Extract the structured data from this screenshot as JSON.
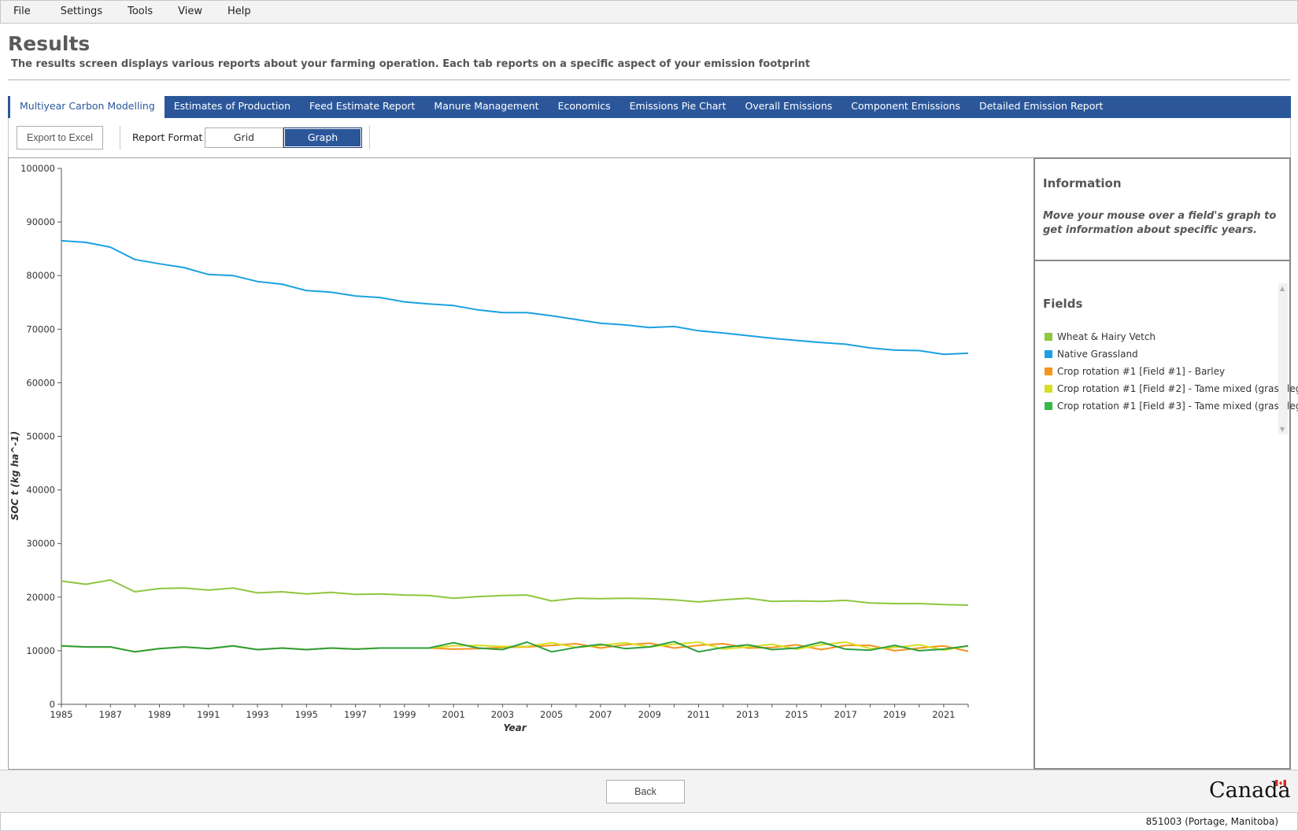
{
  "menu": [
    "File",
    "Settings",
    "Tools",
    "View",
    "Help"
  ],
  "header": {
    "title": "Results",
    "subtitle": "The results screen displays various reports about your farming operation. Each tab reports on a specific aspect of your emission footprint"
  },
  "tabs": [
    {
      "label": "Multiyear Carbon Modelling",
      "active": true
    },
    {
      "label": "Estimates of Production"
    },
    {
      "label": "Feed Estimate Report"
    },
    {
      "label": "Manure Management"
    },
    {
      "label": "Economics"
    },
    {
      "label": "Emissions Pie Chart"
    },
    {
      "label": "Overall Emissions"
    },
    {
      "label": "Component Emissions"
    },
    {
      "label": "Detailed Emission Report"
    }
  ],
  "toolbar": {
    "export_label": "Export to Excel",
    "format_label": "Report Format :",
    "grid_label": "Grid",
    "graph_label": "Graph",
    "selected": "Graph"
  },
  "info": {
    "title": "Information",
    "text": "Move your mouse over a field's graph to get information about specific years."
  },
  "fields": {
    "title": "Fields",
    "items": [
      {
        "label": "Wheat & Hairy Vetch",
        "color": "#8dc63f"
      },
      {
        "label": "Native Grassland",
        "color": "#1ba1e2"
      },
      {
        "label": "Crop rotation #1 [Field #1] - Barley",
        "color": "#f7941d"
      },
      {
        "label": "Crop rotation #1 [Field #2] - Tame mixed (grass/leg",
        "color": "#d7df23"
      },
      {
        "label": "Crop rotation #1 [Field #3] - Tame mixed (grass/leg",
        "color": "#39b54a"
      }
    ]
  },
  "chart_data": {
    "type": "line",
    "xlabel": "Year",
    "ylabel": "SOC t (kg ha^-1)",
    "xlim": [
      1985,
      2022
    ],
    "ylim": [
      0,
      100000
    ],
    "x_ticks": [
      1985,
      1987,
      1989,
      1991,
      1993,
      1995,
      1997,
      1999,
      2001,
      2003,
      2005,
      2007,
      2009,
      2011,
      2013,
      2015,
      2017,
      2019,
      2021
    ],
    "y_ticks": [
      0,
      10000,
      20000,
      30000,
      40000,
      50000,
      60000,
      70000,
      80000,
      90000,
      100000
    ],
    "x": [
      1985,
      1986,
      1987,
      1988,
      1989,
      1990,
      1991,
      1992,
      1993,
      1994,
      1995,
      1996,
      1997,
      1998,
      1999,
      2000,
      2001,
      2002,
      2003,
      2004,
      2005,
      2006,
      2007,
      2008,
      2009,
      2010,
      2011,
      2012,
      2013,
      2014,
      2015,
      2016,
      2017,
      2018,
      2019,
      2020,
      2021,
      2022
    ],
    "series": [
      {
        "name": "Native Grassland",
        "color": "#1ba1e2",
        "values": [
          86500,
          86200,
          85300,
          83000,
          82200,
          81500,
          80200,
          80000,
          78900,
          78400,
          77200,
          76900,
          76200,
          75900,
          75100,
          74700,
          74400,
          73600,
          73100,
          73100,
          72500,
          71800,
          71100,
          70800,
          70300,
          70500,
          69700,
          69300,
          68800,
          68300,
          67900,
          67500,
          67200,
          66500,
          66100,
          66000,
          65300,
          65500
        ]
      },
      {
        "name": "Wheat & Hairy Vetch",
        "color": "#8dc63f",
        "values": [
          23000,
          22400,
          23200,
          21000,
          21600,
          21700,
          21300,
          21700,
          20800,
          21000,
          20600,
          20900,
          20500,
          20600,
          20400,
          20300,
          19800,
          20100,
          20300,
          20400,
          19300,
          19800,
          19700,
          19800,
          19700,
          19500,
          19100,
          19500,
          19800,
          19200,
          19300,
          19200,
          19400,
          18900,
          18800,
          18800,
          18600,
          18500
        ]
      },
      {
        "name": "Crop rotation #1 [Field #1] - Barley",
        "color": "#f7941d",
        "values": [
          10900,
          10700,
          10700,
          9800,
          10400,
          10700,
          10400,
          10900,
          10200,
          10500,
          10200,
          10500,
          10300,
          10500,
          10500,
          10500,
          10300,
          10400,
          10600,
          10700,
          11000,
          11300,
          10500,
          11100,
          11400,
          10500,
          11000,
          11300,
          10500,
          10600,
          11100,
          10200,
          11000,
          11000,
          10000,
          10500,
          10900,
          9900
        ]
      },
      {
        "name": "Crop rotation #1 [Field #2] - Tame mixed (grass/leg",
        "color": "#d7df23",
        "values": [
          10900,
          10700,
          10700,
          9800,
          10400,
          10700,
          10400,
          10900,
          10200,
          10500,
          10200,
          10500,
          10300,
          10500,
          10500,
          10500,
          10900,
          11000,
          10800,
          10800,
          11500,
          10600,
          11000,
          11500,
          10700,
          11200,
          11600,
          10300,
          10700,
          11200,
          10300,
          11100,
          11600,
          10400,
          10600,
          11100,
          10100,
          10900
        ]
      },
      {
        "name": "Crop rotation #1 [Field #3] - Tame mixed (grass/leg",
        "color": "#2e9e3e",
        "values": [
          10900,
          10700,
          10700,
          9800,
          10400,
          10700,
          10400,
          10900,
          10200,
          10500,
          10200,
          10500,
          10300,
          10500,
          10500,
          10500,
          11500,
          10500,
          10200,
          11600,
          9800,
          10600,
          11200,
          10400,
          10700,
          11700,
          9800,
          10600,
          11100,
          10200,
          10500,
          11600,
          10300,
          10100,
          11000,
          10000,
          10300,
          10900
        ]
      }
    ]
  },
  "footer": {
    "back_label": "Back",
    "brand": "Canada",
    "status": "851003 (Portage, Manitoba)"
  }
}
